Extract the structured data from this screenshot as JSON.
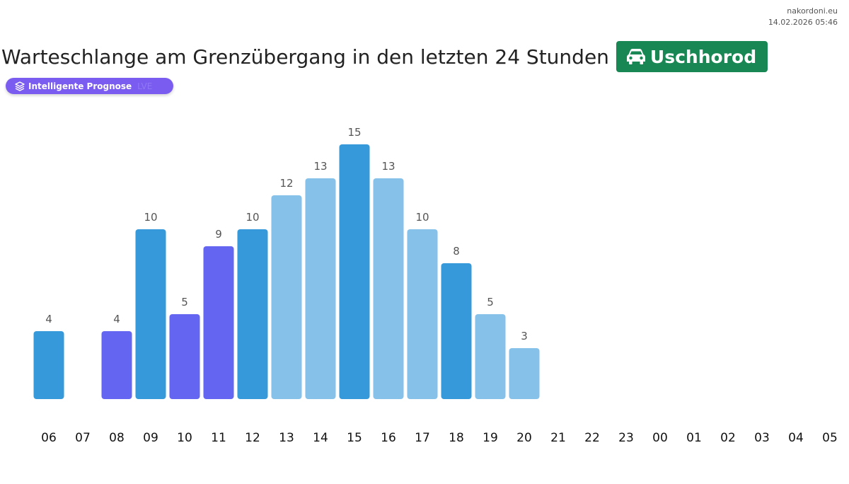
{
  "site": {
    "domain": "nakordoni.eu",
    "datetime": "14.02.2026 05:46"
  },
  "header": {
    "title": "Warteschlange am Grenzübergang in den letzten 24 Stunden",
    "city": "Uschhorod",
    "city_icon": "car-icon",
    "badge_color": "#198754"
  },
  "forecast": {
    "label": "Intelligente Prognose",
    "icon": "layers-icon",
    "extra": "LVE",
    "color": "#7b5cf0"
  },
  "colors": {
    "dark_blue": "#3599da",
    "light_blue": "#86c1ea",
    "purple": "#6465f1"
  },
  "chart_data": {
    "type": "bar",
    "title": "Warteschlange am Grenzübergang in den letzten 24 Stunden",
    "xlabel": "",
    "ylabel": "",
    "ylim": [
      0,
      15
    ],
    "grid": false,
    "categories": [
      "06",
      "07",
      "08",
      "09",
      "10",
      "11",
      "12",
      "13",
      "14",
      "15",
      "16",
      "17",
      "18",
      "19",
      "20",
      "21",
      "22",
      "23",
      "00",
      "01",
      "02",
      "03",
      "04",
      "05"
    ],
    "values": [
      4,
      null,
      4,
      10,
      5,
      9,
      10,
      12,
      13,
      15,
      13,
      10,
      8,
      5,
      3,
      null,
      null,
      null,
      null,
      null,
      null,
      null,
      null,
      null
    ],
    "bar_colors": [
      "dark_blue",
      null,
      "purple",
      "dark_blue",
      "purple",
      "purple",
      "dark_blue",
      "light_blue",
      "light_blue",
      "dark_blue",
      "light_blue",
      "light_blue",
      "dark_blue",
      "light_blue",
      "light_blue",
      null,
      null,
      null,
      null,
      null,
      null,
      null,
      null,
      null
    ]
  }
}
